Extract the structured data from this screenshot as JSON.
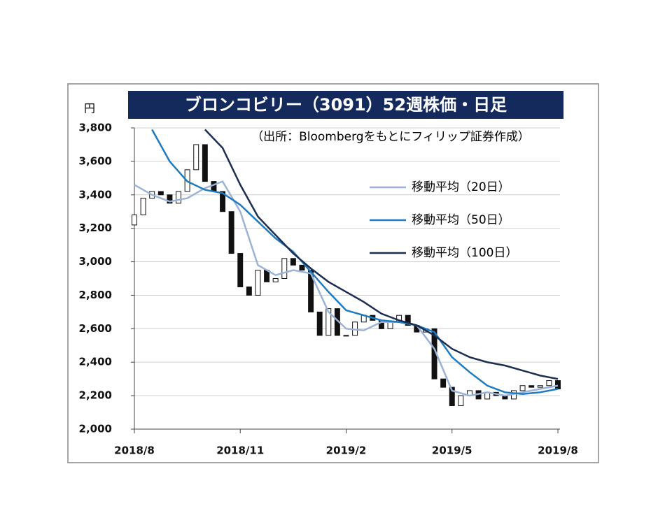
{
  "chart_data": {
    "type": "candlestick",
    "title": "ブロンコビリー（3091）52週株価・日足",
    "y_label": "円",
    "annotation": "（出所：Bloombergをもとにフィリップ証券作成）",
    "xlim": [
      0,
      12
    ],
    "xticks": [
      {
        "value": 0,
        "label": "2018/8"
      },
      {
        "value": 3,
        "label": "2018/11"
      },
      {
        "value": 6,
        "label": "2019/2"
      },
      {
        "value": 9,
        "label": "2019/5"
      },
      {
        "value": 12,
        "label": "2019/8"
      }
    ],
    "ylim": [
      2000,
      3800
    ],
    "yticks": [
      {
        "value": 2000,
        "label": "2,000"
      },
      {
        "value": 2200,
        "label": "2,200"
      },
      {
        "value": 2400,
        "label": "2,400"
      },
      {
        "value": 2600,
        "label": "2,600"
      },
      {
        "value": 2800,
        "label": "2,800"
      },
      {
        "value": 3000,
        "label": "3,000"
      },
      {
        "value": 3200,
        "label": "3,200"
      },
      {
        "value": 3400,
        "label": "3,400"
      },
      {
        "value": 3600,
        "label": "3,600"
      },
      {
        "value": 3800,
        "label": "3,800"
      }
    ],
    "grid": true,
    "candles": {
      "x": [
        0,
        0.25,
        0.5,
        0.75,
        1,
        1.25,
        1.5,
        1.75,
        2,
        2.25,
        2.5,
        2.75,
        3,
        3.25,
        3.5,
        3.75,
        4,
        4.25,
        4.5,
        4.75,
        5,
        5.25,
        5.5,
        5.75,
        6,
        6.25,
        6.5,
        6.75,
        7,
        7.25,
        7.5,
        7.75,
        8,
        8.25,
        8.5,
        8.75,
        9,
        9.25,
        9.5,
        9.75,
        10,
        10.25,
        10.5,
        10.75,
        11,
        11.25,
        11.5,
        11.75,
        12
      ],
      "open": [
        3220,
        3280,
        3380,
        3420,
        3400,
        3350,
        3420,
        3550,
        3700,
        3480,
        3420,
        3300,
        3050,
        2850,
        2800,
        2950,
        2880,
        2900,
        3020,
        2980,
        2950,
        2700,
        2560,
        2720,
        2560,
        2560,
        2640,
        2680,
        2650,
        2600,
        2640,
        2680,
        2620,
        2580,
        2600,
        2300,
        2250,
        2140,
        2200,
        2230,
        2180,
        2220,
        2200,
        2180,
        2230,
        2260,
        2250,
        2260,
        2290
      ],
      "close": [
        3280,
        3380,
        3420,
        3400,
        3350,
        3420,
        3550,
        3700,
        3480,
        3420,
        3300,
        3050,
        2850,
        2800,
        2950,
        2880,
        2900,
        3020,
        2980,
        2950,
        2700,
        2560,
        2720,
        2560,
        2560,
        2640,
        2680,
        2650,
        2600,
        2640,
        2680,
        2620,
        2580,
        2600,
        2300,
        2250,
        2140,
        2200,
        2230,
        2180,
        2220,
        2200,
        2180,
        2230,
        2260,
        2250,
        2260,
        2290,
        2240
      ]
    },
    "series": [
      {
        "name": "移動平均（20日）",
        "color": "#9bb3d6",
        "x": [
          0,
          0.5,
          1,
          1.5,
          2,
          2.5,
          3,
          3.5,
          4,
          4.5,
          5,
          5.5,
          6,
          6.5,
          7,
          7.5,
          8,
          8.5,
          9,
          9.5,
          10,
          10.5,
          11,
          11.5,
          12
        ],
        "values": [
          3460,
          3400,
          3360,
          3380,
          3440,
          3480,
          3300,
          2980,
          2920,
          2950,
          2930,
          2700,
          2600,
          2590,
          2640,
          2640,
          2620,
          2480,
          2230,
          2200,
          2220,
          2200,
          2220,
          2240,
          2260
        ]
      },
      {
        "name": "移動平均（50日）",
        "color": "#1f7bbf",
        "x": [
          0.5,
          1,
          1.5,
          2,
          2.5,
          3,
          3.5,
          4,
          4.5,
          5,
          5.5,
          6,
          6.5,
          7,
          7.5,
          8,
          8.5,
          9,
          9.5,
          10,
          10.5,
          11,
          11.5,
          12
        ],
        "values": [
          3790,
          3600,
          3480,
          3430,
          3410,
          3340,
          3240,
          3140,
          3060,
          2940,
          2820,
          2710,
          2680,
          2650,
          2640,
          2620,
          2580,
          2430,
          2340,
          2260,
          2220,
          2210,
          2220,
          2240
        ]
      },
      {
        "name": "移動平均（100日）",
        "color": "#1c2e52",
        "x": [
          2,
          2.5,
          3,
          3.5,
          4,
          4.5,
          5,
          5.5,
          6,
          6.5,
          7,
          7.5,
          8,
          8.5,
          9,
          9.5,
          10,
          10.5,
          11,
          11.5,
          12
        ],
        "values": [
          3790,
          3680,
          3460,
          3270,
          3160,
          3050,
          2960,
          2880,
          2820,
          2760,
          2690,
          2650,
          2620,
          2560,
          2480,
          2430,
          2400,
          2380,
          2350,
          2320,
          2300
        ]
      }
    ]
  }
}
